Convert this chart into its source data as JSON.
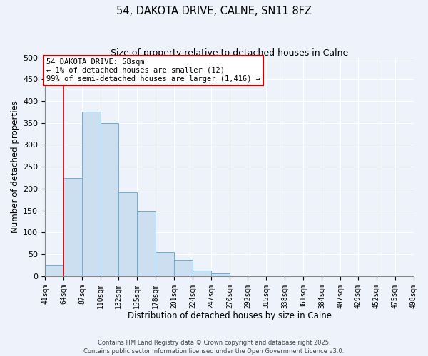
{
  "title": "54, DAKOTA DRIVE, CALNE, SN11 8FZ",
  "subtitle": "Size of property relative to detached houses in Calne",
  "xlabel": "Distribution of detached houses by size in Calne",
  "ylabel": "Number of detached properties",
  "bar_color": "#ccdff0",
  "bar_edge_color": "#6aaed6",
  "background_color": "#eef2fb",
  "grid_color": "#ffffff",
  "bin_labels": [
    "41sqm",
    "64sqm",
    "87sqm",
    "110sqm",
    "132sqm",
    "155sqm",
    "178sqm",
    "201sqm",
    "224sqm",
    "247sqm",
    "270sqm",
    "292sqm",
    "315sqm",
    "338sqm",
    "361sqm",
    "384sqm",
    "407sqm",
    "429sqm",
    "452sqm",
    "475sqm",
    "498sqm"
  ],
  "bin_edges": [
    41,
    64,
    87,
    110,
    132,
    155,
    178,
    201,
    224,
    247,
    270,
    292,
    315,
    338,
    361,
    384,
    407,
    429,
    452,
    475,
    498
  ],
  "bar_heights": [
    25,
    225,
    375,
    350,
    192,
    147,
    55,
    38,
    12,
    6,
    0,
    0,
    0,
    0,
    0,
    0,
    0,
    0,
    0,
    0
  ],
  "property_line_x": 64,
  "property_line_color": "#cc0000",
  "annotation_title": "54 DAKOTA DRIVE: 58sqm",
  "annotation_line1": "← 1% of detached houses are smaller (12)",
  "annotation_line2": "99% of semi-detached houses are larger (1,416) →",
  "annotation_box_color": "#cc0000",
  "ylim": [
    0,
    500
  ],
  "yticks": [
    0,
    50,
    100,
    150,
    200,
    250,
    300,
    350,
    400,
    450,
    500
  ],
  "footer1": "Contains HM Land Registry data © Crown copyright and database right 2025.",
  "footer2": "Contains public sector information licensed under the Open Government Licence v3.0."
}
